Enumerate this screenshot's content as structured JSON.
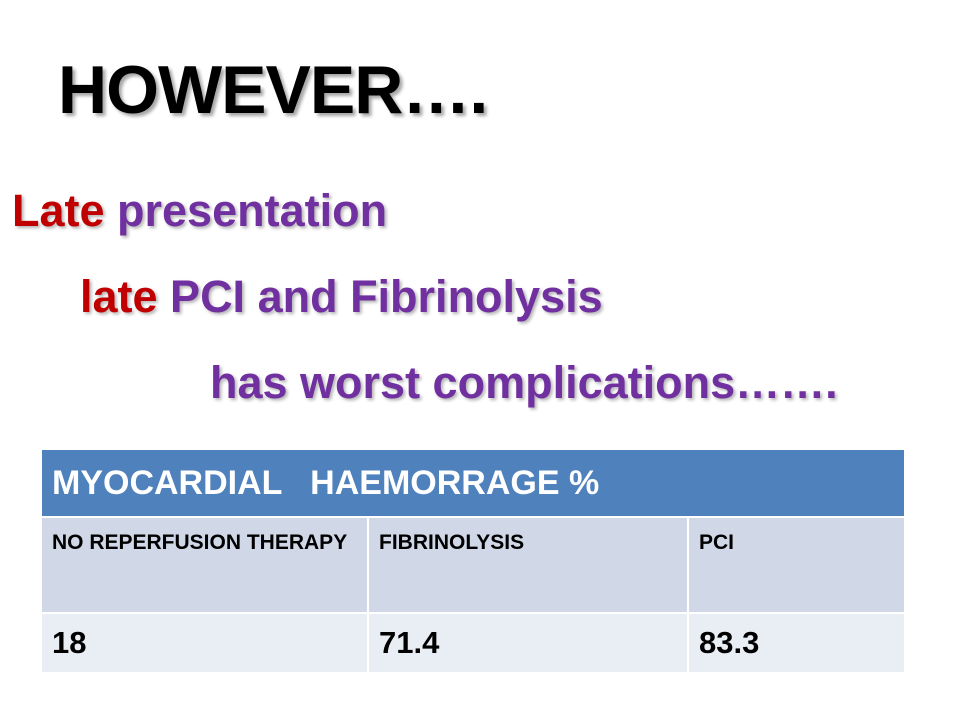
{
  "slide": {
    "title": "HOWEVER….",
    "lines": [
      {
        "red": "Late",
        "purple": " presentation"
      },
      {
        "red": "late",
        "purple": " PCI and Fibrinolysis"
      },
      {
        "purple": "has worst complications……."
      }
    ],
    "colors": {
      "red": "#c00000",
      "purple": "#7030a0",
      "table_header": "#4f81bd",
      "table_row_1": "#d0d8e8",
      "table_row_2": "#e9edf4"
    }
  },
  "table": {
    "header": "MYOCARDIAL   HAEMORRAGE %",
    "columns": [
      "NO REPERFUSION THERAPY",
      "FIBRINOLYSIS",
      "PCI"
    ],
    "values": [
      "18",
      "71.4",
      "83.3"
    ]
  }
}
